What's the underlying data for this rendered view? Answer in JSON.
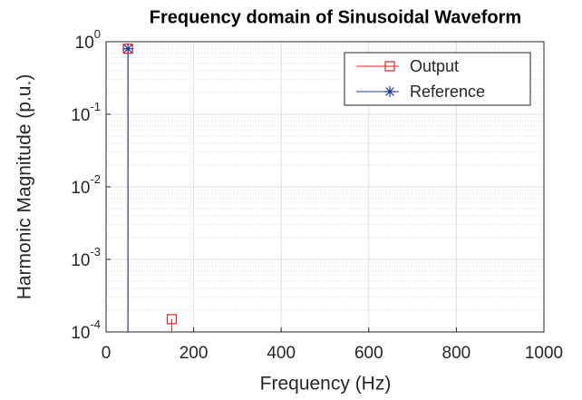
{
  "chart_data": {
    "type": "stem",
    "title": "Frequency domain of Sinusoidal Waveform",
    "xlabel": "Frequency (Hz)",
    "ylabel": "Harmonic Magnitude (p.u.)",
    "log_y": true,
    "grid": true,
    "minor_grid": true,
    "legend": "northeast",
    "xlim": [
      0,
      1000
    ],
    "xticks": [
      0,
      200,
      400,
      600,
      800,
      1000
    ],
    "ylim": [
      0.0001,
      1
    ],
    "yticks": [
      {
        "value": 0.0001,
        "label": "10",
        "exponent": "-4"
      },
      {
        "value": 0.001,
        "label": "10",
        "exponent": "-3"
      },
      {
        "value": 0.01,
        "label": "10",
        "exponent": "-2"
      },
      {
        "value": 0.1,
        "label": "10",
        "exponent": "-1"
      },
      {
        "value": 1,
        "label": "10",
        "exponent": "0"
      }
    ],
    "series": [
      {
        "name": "Output",
        "color": "#d62728",
        "marker": "square",
        "x": [
          50,
          150
        ],
        "values": [
          0.8,
          0.00015
        ]
      },
      {
        "name": "Reference",
        "color": "#1f3a93",
        "marker": "asterisk",
        "x": [
          50
        ],
        "values": [
          0.8
        ]
      }
    ]
  }
}
